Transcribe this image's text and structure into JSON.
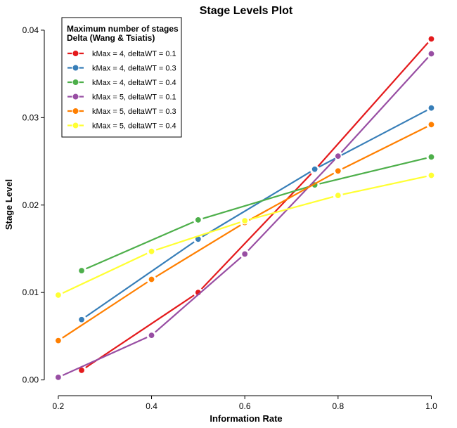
{
  "chart_data": {
    "type": "line",
    "title": "Stage Levels Plot",
    "xlabel": "Information Rate",
    "ylabel": "Stage Level",
    "xlim": [
      0.17,
      1.04
    ],
    "ylim": [
      -0.0018,
      0.0412
    ],
    "xticks": [
      0.2,
      0.4,
      0.6,
      0.8,
      1.0
    ],
    "xtick_labels": [
      "0.2",
      "0.4",
      "0.6",
      "0.8",
      "1.0"
    ],
    "yticks": [
      0.0,
      0.01,
      0.02,
      0.03,
      0.04
    ],
    "ytick_labels": [
      "0.00",
      "0.01",
      "0.02",
      "0.03",
      "0.04"
    ],
    "grid": false,
    "legend": {
      "placement": "top-left",
      "title_lines": [
        "Maximum number of stages",
        "Delta (Wang & Tsiatis)"
      ]
    },
    "series": [
      {
        "name": "kMax = 4, deltaWT = 0.1",
        "color": "#E41A1C",
        "x": [
          0.25,
          0.5,
          0.75,
          1.0
        ],
        "y": [
          0.0011,
          0.01,
          0.024,
          0.039
        ]
      },
      {
        "name": "kMax = 4, deltaWT = 0.3",
        "color": "#377EB8",
        "x": [
          0.25,
          0.5,
          0.75,
          1.0
        ],
        "y": [
          0.0069,
          0.0161,
          0.0241,
          0.0311
        ]
      },
      {
        "name": "kMax = 4, deltaWT = 0.4",
        "color": "#4DAF4A",
        "x": [
          0.25,
          0.5,
          0.75,
          1.0
        ],
        "y": [
          0.0125,
          0.0183,
          0.0223,
          0.0255
        ]
      },
      {
        "name": "kMax = 5, deltaWT = 0.1",
        "color": "#984EA3",
        "x": [
          0.2,
          0.4,
          0.6,
          0.8,
          1.0
        ],
        "y": [
          0.0003,
          0.0051,
          0.0144,
          0.0256,
          0.0373
        ]
      },
      {
        "name": "kMax = 5, deltaWT = 0.3",
        "color": "#FF7F00",
        "x": [
          0.2,
          0.4,
          0.6,
          0.8,
          1.0
        ],
        "y": [
          0.0045,
          0.0115,
          0.018,
          0.0239,
          0.0292
        ]
      },
      {
        "name": "kMax = 5, deltaWT = 0.4",
        "color": "#FFFF33",
        "x": [
          0.2,
          0.4,
          0.6,
          0.8,
          1.0
        ],
        "y": [
          0.0097,
          0.0147,
          0.0182,
          0.0211,
          0.0234
        ]
      }
    ]
  }
}
